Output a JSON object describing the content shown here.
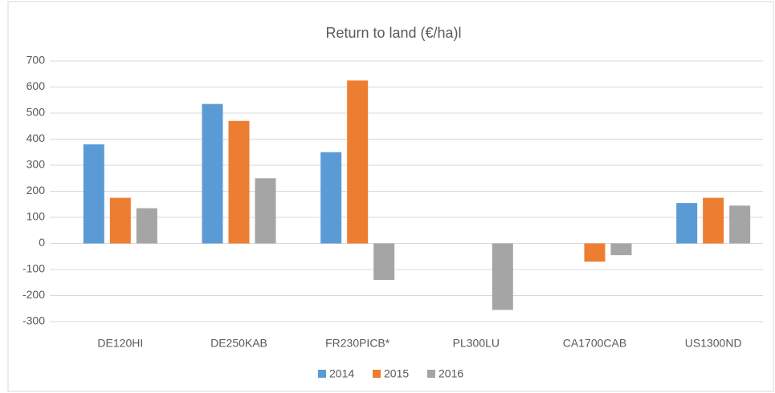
{
  "chart_data": {
    "type": "bar",
    "title": "Return to land (€/ha)l",
    "categories": [
      "DE120HI",
      "DE250KAB",
      "FR230PICB*",
      "PL300LU",
      "CA1700CAB",
      "US1300ND"
    ],
    "series": [
      {
        "name": "2014",
        "color": "#5b9bd5",
        "values": [
          380,
          535,
          350,
          null,
          null,
          155
        ]
      },
      {
        "name": "2015",
        "color": "#ed7d31",
        "values": [
          175,
          470,
          625,
          null,
          -70,
          175
        ]
      },
      {
        "name": "2016",
        "color": "#a5a5a5",
        "values": [
          135,
          250,
          -140,
          -255,
          -45,
          145
        ]
      }
    ],
    "ylim": [
      -300,
      700
    ],
    "yticks": [
      -300,
      -200,
      -100,
      0,
      100,
      200,
      300,
      400,
      500,
      600,
      700
    ],
    "grid": true,
    "legend": "bottom"
  }
}
